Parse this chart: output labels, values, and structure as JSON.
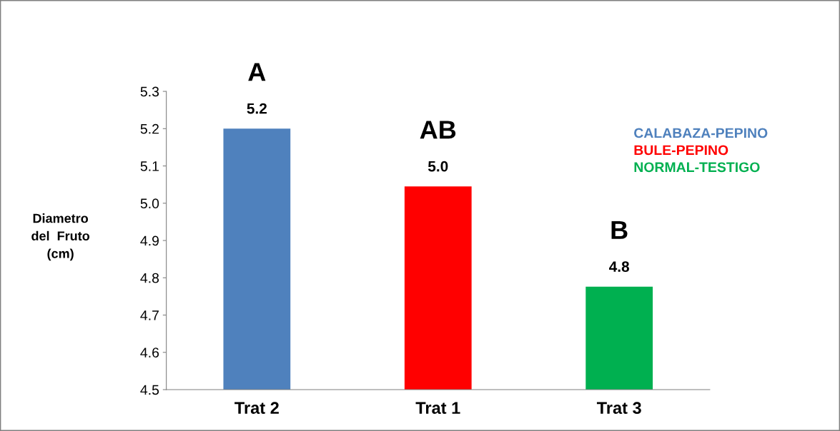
{
  "chart_data": {
    "type": "bar",
    "ylabel": "Diametro\ndel  Fruto\n(cm)",
    "categories": [
      "Trat 2",
      "Trat 1",
      "Trat 3"
    ],
    "series": [
      {
        "name": "CALABAZA-PEPINO",
        "color": "#4f81bd",
        "values": [
          5.2,
          null,
          null
        ],
        "value_labels": [
          "5.2",
          null,
          null
        ]
      },
      {
        "name": "BULE-PEPINO",
        "color": "#ff0000",
        "values": [
          null,
          5.045,
          null
        ],
        "value_labels": [
          null,
          "5.0",
          null
        ]
      },
      {
        "name": "NORMAL-TESTIGO",
        "color": "#00b050",
        "values": [
          null,
          null,
          4.776
        ],
        "value_labels": [
          null,
          null,
          "4.8"
        ]
      }
    ],
    "ylim": [
      4.5,
      5.3
    ],
    "yticks": [
      4.5,
      4.6,
      4.7,
      4.8,
      4.9,
      {
        "value": 5.0,
        "label": "5.0"
      },
      5.1,
      5.2,
      5.3
    ],
    "annotations": [
      "A",
      "AB",
      "B"
    ],
    "legend": "right",
    "grid": false
  }
}
